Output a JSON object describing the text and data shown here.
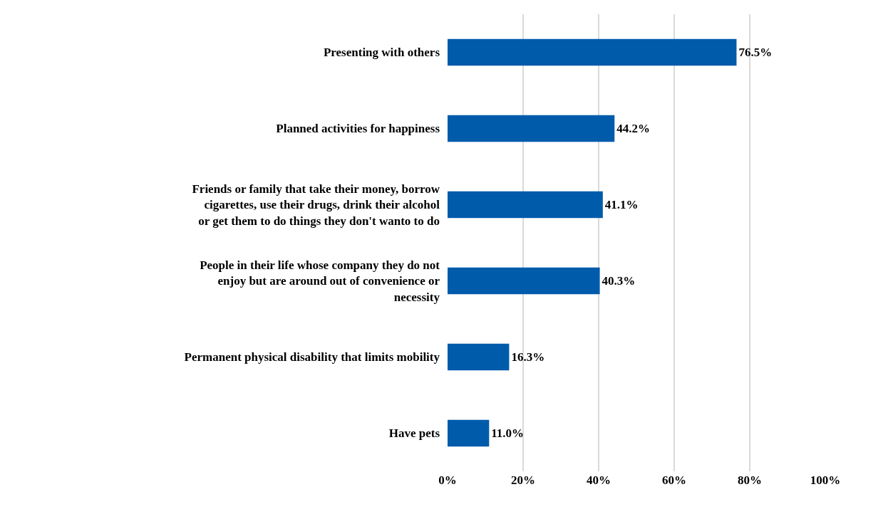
{
  "chart_data": {
    "type": "bar",
    "orientation": "horizontal",
    "categories": [
      "Presenting with others",
      "Planned activities for happiness",
      "Friends or family that take their money, borrow cigarettes, use their drugs, drink their alcohol or get them to do things they don't wanto to do",
      "People in their life whose company they do not enjoy but are around out of convenience or necessity",
      "Permanent physical disability that limits mobility",
      "Have pets"
    ],
    "values": [
      76.5,
      44.2,
      41.1,
      40.3,
      16.3,
      11.0
    ],
    "value_labels": [
      "76.5%",
      "44.2%",
      "41.1%",
      "40.3%",
      "16.3%",
      "11.0%"
    ],
    "color": "#005bab",
    "xlim": [
      0,
      100
    ],
    "xticks": [
      {
        "value": 0,
        "label": "0%"
      },
      {
        "value": 20,
        "label": "20%"
      },
      {
        "value": 40,
        "label": "40%"
      },
      {
        "value": 60,
        "label": "60%"
      },
      {
        "value": 80,
        "label": "80%"
      },
      {
        "value": 100,
        "label": "100%"
      }
    ],
    "grid": "x",
    "legend": false
  }
}
